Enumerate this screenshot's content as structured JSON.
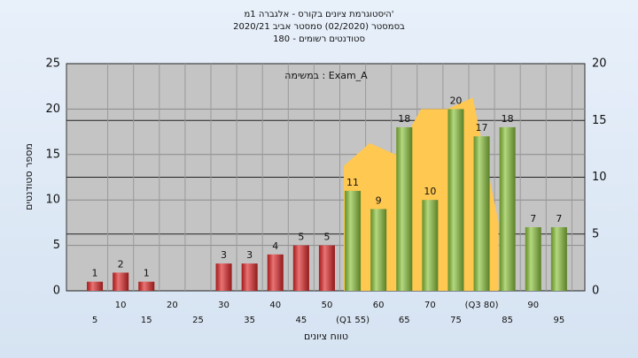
{
  "chart_data": {
    "type": "bar",
    "title": [
      "היסטוגרמת ציונים בקורס - אלגברה 1מ'",
      "בסמסטר (02/2020) סמסטר אביב 2020/21",
      "סטודנטים רשומים - 180"
    ],
    "annotation": "במשימה : Exam_A",
    "ylabel": "מספר סטודנטים",
    "xlabel": "טווח ציונים",
    "categories": [
      "5",
      "10",
      "15",
      "20",
      "25",
      "30",
      "35",
      "40",
      "45",
      "50",
      "(Q1 55)",
      "60",
      "65",
      "70",
      "75",
      "(Q3 80)",
      "85",
      "90",
      "95"
    ],
    "values": [
      1,
      2,
      1,
      0,
      0,
      3,
      3,
      4,
      5,
      5,
      11,
      9,
      18,
      10,
      20,
      17,
      18,
      7,
      7
    ],
    "colors": [
      "#e02828",
      "#e02828",
      "#e02828",
      "#e02828",
      "#e02828",
      "#e02828",
      "#e02828",
      "#e02828",
      "#e02828",
      "#e02828",
      "#8cc43c",
      "#8cc43c",
      "#8cc43c",
      "#8cc43c",
      "#8cc43c",
      "#8cc43c",
      "#8cc43c",
      "#8cc43c",
      "#8cc43c"
    ],
    "area": {
      "axis": "y2",
      "color": "#ffc850",
      "values": [
        null,
        null,
        null,
        null,
        null,
        null,
        null,
        null,
        null,
        null,
        11,
        13,
        12,
        16,
        16,
        17,
        6,
        null,
        null
      ]
    },
    "ylim": [
      0,
      25
    ],
    "yticks": [
      0,
      5,
      10,
      15,
      20,
      25
    ],
    "y2lim": [
      0,
      20
    ],
    "y2ticks": [
      0,
      5,
      10,
      15,
      20
    ],
    "grid": true
  }
}
